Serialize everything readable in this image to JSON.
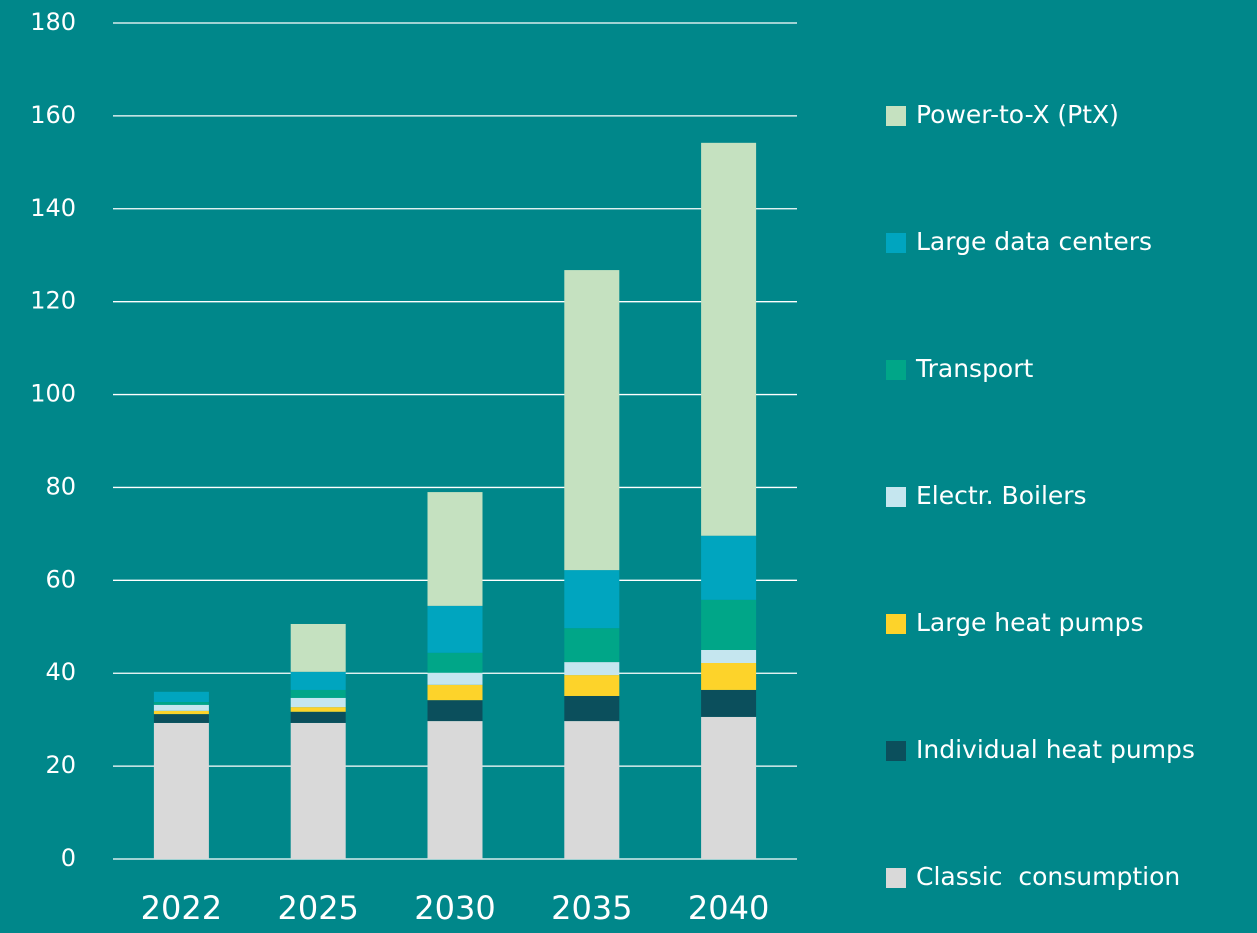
{
  "chart_data": {
    "type": "stacked_bar",
    "categories": [
      "2022",
      "2025",
      "2030",
      "2035",
      "2040"
    ],
    "series": [
      {
        "name": "Classic  consumption",
        "color": "#d9d9d9",
        "values": [
          29.3,
          29.3,
          29.7,
          29.7,
          30.6
        ]
      },
      {
        "name": "Individual heat pumps",
        "color": "#0b4f5c",
        "values": [
          1.9,
          2.4,
          4.5,
          5.4,
          5.8
        ]
      },
      {
        "name": "Large heat pumps",
        "color": "#fdd32a",
        "values": [
          0.7,
          1.0,
          3.3,
          4.5,
          5.8
        ]
      },
      {
        "name": "Electr. Boilers",
        "color": "#c5e6ef",
        "values": [
          1.3,
          2.0,
          2.6,
          2.8,
          2.8
        ]
      },
      {
        "name": "Transport",
        "color": "#00a688",
        "values": [
          0.6,
          1.7,
          4.3,
          7.3,
          10.8
        ]
      },
      {
        "name": "Large data centers",
        "color": "#00a5bf",
        "values": [
          2.2,
          3.9,
          10.1,
          12.5,
          13.8
        ]
      },
      {
        "name": "Power-to-X (PtX)",
        "color": "#c5e1c0",
        "values": [
          0,
          10.3,
          24.5,
          64.6,
          84.6
        ]
      }
    ],
    "ylim": [
      0,
      180
    ],
    "yticks": [
      0,
      20,
      40,
      60,
      80,
      100,
      120,
      140,
      160,
      180
    ],
    "grid": true
  }
}
